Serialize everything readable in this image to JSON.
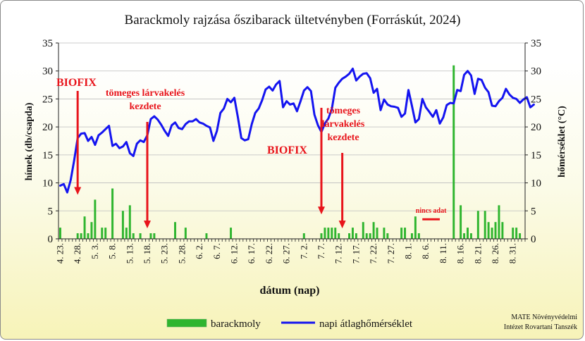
{
  "chart_data": {
    "type": "bar+line",
    "title": "Barackmoly rajzása őszibarack ültetvényben (Forráskút, 2024)",
    "xlabel": "dátum (nap)",
    "ylabel_left": "hímek (db/csapda)",
    "ylabel_right": "hőmérséklet (°C)",
    "ylim": [
      0,
      35
    ],
    "yticks": [
      "0",
      "5",
      "10",
      "15",
      "20",
      "25",
      "30",
      "35"
    ],
    "x_start": "2024-04-23",
    "x_end": "2024-09-03",
    "x_ticks": [
      "4. 23.",
      "4. 28.",
      "5. 3.",
      "5. 8.",
      "5. 13.",
      "5. 18.",
      "5. 23.",
      "5. 28.",
      "6. 2.",
      "6. 7.",
      "6. 12.",
      "6. 17.",
      "6. 22.",
      "6. 27.",
      "7. 2.",
      "7. 7.",
      "7. 12.",
      "7. 17.",
      "7. 22.",
      "7. 27.",
      "8. 1.",
      "8. 6.",
      "8. 11.",
      "8. 16.",
      "8. 21.",
      "8. 26.",
      "8. 31."
    ],
    "series": [
      {
        "name": "barackmoly",
        "type": "bar",
        "color": "#2fb52f",
        "points": [
          [
            "2024-04-23",
            2
          ],
          [
            "2024-04-28",
            1
          ],
          [
            "2024-04-29",
            1
          ],
          [
            "2024-04-30",
            4
          ],
          [
            "2024-05-01",
            1
          ],
          [
            "2024-05-02",
            3
          ],
          [
            "2024-05-03",
            7
          ],
          [
            "2024-05-05",
            2
          ],
          [
            "2024-05-06",
            2
          ],
          [
            "2024-05-08",
            9
          ],
          [
            "2024-05-11",
            5
          ],
          [
            "2024-05-12",
            2
          ],
          [
            "2024-05-13",
            6
          ],
          [
            "2024-05-14",
            1
          ],
          [
            "2024-05-16",
            1
          ],
          [
            "2024-05-19",
            1
          ],
          [
            "2024-05-20",
            1
          ],
          [
            "2024-05-26",
            3
          ],
          [
            "2024-05-29",
            2
          ],
          [
            "2024-06-04",
            1
          ],
          [
            "2024-06-11",
            2
          ],
          [
            "2024-07-02",
            1
          ],
          [
            "2024-07-07",
            1
          ],
          [
            "2024-07-08",
            2
          ],
          [
            "2024-07-09",
            2
          ],
          [
            "2024-07-10",
            2
          ],
          [
            "2024-07-11",
            2
          ],
          [
            "2024-07-12",
            1
          ],
          [
            "2024-07-15",
            1
          ],
          [
            "2024-07-16",
            2
          ],
          [
            "2024-07-17",
            1
          ],
          [
            "2024-07-19",
            3
          ],
          [
            "2024-07-20",
            1
          ],
          [
            "2024-07-21",
            1
          ],
          [
            "2024-07-22",
            3
          ],
          [
            "2024-07-23",
            2
          ],
          [
            "2024-07-25",
            2
          ],
          [
            "2024-07-26",
            1
          ],
          [
            "2024-07-30",
            2
          ],
          [
            "2024-07-31",
            2
          ],
          [
            "2024-08-02",
            1
          ],
          [
            "2024-08-03",
            4
          ],
          [
            "2024-08-04",
            1
          ],
          [
            "2024-08-14",
            31
          ],
          [
            "2024-08-16",
            6
          ],
          [
            "2024-08-17",
            1
          ],
          [
            "2024-08-18",
            2
          ],
          [
            "2024-08-19",
            1
          ],
          [
            "2024-08-21",
            5
          ],
          [
            "2024-08-23",
            5
          ],
          [
            "2024-08-24",
            3
          ],
          [
            "2024-08-25",
            2
          ],
          [
            "2024-08-26",
            3
          ],
          [
            "2024-08-27",
            6
          ],
          [
            "2024-08-28",
            3
          ],
          [
            "2024-08-31",
            2
          ],
          [
            "2024-09-01",
            2
          ],
          [
            "2024-09-02",
            1
          ]
        ]
      },
      {
        "name": "napi átlaghőmérséklet",
        "type": "line",
        "color": "#1414f0",
        "start": "2024-04-23",
        "values": [
          9.5,
          9.8,
          8.3,
          10.5,
          14.0,
          18.0,
          18.8,
          18.9,
          17.5,
          18.2,
          16.8,
          18.5,
          19.0,
          19.6,
          20.2,
          16.6,
          17.0,
          16.2,
          16.5,
          17.3,
          15.3,
          14.8,
          17.0,
          17.6,
          17.3,
          18.5,
          21.4,
          21.9,
          21.3,
          20.4,
          19.3,
          18.4,
          20.3,
          20.8,
          19.8,
          19.6,
          20.5,
          21.0,
          21.0,
          21.4,
          20.8,
          20.6,
          20.2,
          19.9,
          17.5,
          19.3,
          22.5,
          23.3,
          25.0,
          24.4,
          25.2,
          21.8,
          18.0,
          17.6,
          17.8,
          20.5,
          22.5,
          23.3,
          24.8,
          26.7,
          27.2,
          26.5,
          27.6,
          28.2,
          23.5,
          24.6,
          24.0,
          24.2,
          22.8,
          24.6,
          26.5,
          27.1,
          26.4,
          22.2,
          20.3,
          19.1,
          20.6,
          21.5,
          23.2,
          27.0,
          27.9,
          28.6,
          29.0,
          29.5,
          30.4,
          28.3,
          29.0,
          29.5,
          29.6,
          28.7,
          26.1,
          26.8,
          23.0,
          24.9,
          24.0,
          23.7,
          23.6,
          23.4,
          21.8,
          22.4,
          26.6,
          23.8,
          20.8,
          21.4,
          25.0,
          23.5,
          22.7,
          21.8,
          23.0,
          20.6,
          21.7,
          23.9,
          24.3,
          24.2,
          26.6,
          26.4,
          29.3,
          30.0,
          29.2,
          25.9,
          28.6,
          28.4,
          27.0,
          26.2,
          23.8,
          23.7,
          24.6,
          25.2,
          26.8,
          25.8,
          25.2,
          25.0,
          24.3,
          24.9,
          25.3,
          23.5,
          24.0
        ]
      }
    ],
    "annotations": [
      {
        "lines": [
          "BIOFIX"
        ],
        "arrow_date": "2024-04-28",
        "arrow_value": 8
      },
      {
        "lines": [
          "tömeges lárvakelés",
          "kezdete"
        ],
        "arrow_date": "2024-05-18",
        "arrow_value": 2
      },
      {
        "lines": [
          "BIOFIX"
        ],
        "arrow_date": "2024-07-07",
        "arrow_value": 4.5
      },
      {
        "lines": [
          "tömeges",
          "lárvakelés",
          "kezdete"
        ],
        "arrow_date": "2024-07-13",
        "arrow_value": 2
      },
      {
        "lines": [
          "nincs adat"
        ],
        "range": [
          "2024-08-05",
          "2024-08-10"
        ],
        "value": 3.5
      }
    ],
    "legend": [
      "barackmoly",
      "napi átlaghőmérséklet"
    ],
    "credit": [
      "MATE Növényvédelmi",
      "Intézet Rovartani Tanszék"
    ]
  }
}
